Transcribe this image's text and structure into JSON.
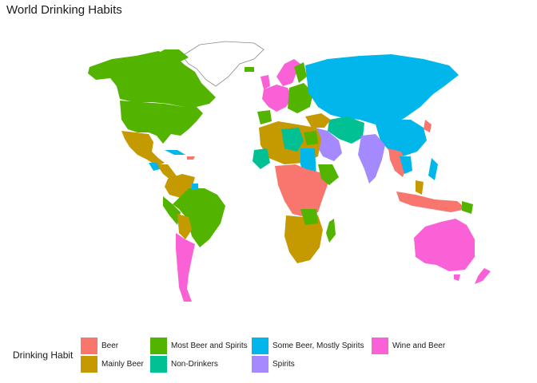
{
  "title": "World Drinking Habits",
  "legend": {
    "title": "Drinking Habit",
    "items": [
      {
        "label": "Beer",
        "color": "#F8766D"
      },
      {
        "label": "Mainly Beer",
        "color": "#C49A00"
      },
      {
        "label": "Most Beer and Spirits",
        "color": "#53B400"
      },
      {
        "label": "Non-Drinkers",
        "color": "#00C094"
      },
      {
        "label": "Some Beer, Mostly Spirits",
        "color": "#00B6EB"
      },
      {
        "label": "Spirits",
        "color": "#A58AFF"
      },
      {
        "label": "Wine and Beer",
        "color": "#FB61D7"
      }
    ]
  },
  "regions": [
    {
      "name": "Greenland",
      "category": "No data"
    },
    {
      "name": "Canada",
      "category": "Most Beer and Spirits"
    },
    {
      "name": "United States",
      "category": "Most Beer and Spirits"
    },
    {
      "name": "Alaska",
      "category": "Most Beer and Spirits"
    },
    {
      "name": "Mexico",
      "category": "Mainly Beer"
    },
    {
      "name": "Central America",
      "category": "Mainly Beer"
    },
    {
      "name": "Cuba",
      "category": "Some Beer, Mostly Spirits"
    },
    {
      "name": "Venezuela / Colombia",
      "category": "Mainly Beer"
    },
    {
      "name": "Brazil",
      "category": "Most Beer and Spirits"
    },
    {
      "name": "Bolivia / Paraguay",
      "category": "Mainly Beer"
    },
    {
      "name": "Argentina / Chile",
      "category": "Wine and Beer"
    },
    {
      "name": "Western Europe",
      "category": "Wine and Beer"
    },
    {
      "name": "Scandinavia",
      "category": "Wine and Beer"
    },
    {
      "name": "Eastern Europe",
      "category": "Most Beer and Spirits"
    },
    {
      "name": "Russia / Central Asia / China",
      "category": "Some Beer, Mostly Spirits"
    },
    {
      "name": "Middle East",
      "category": "Non-Drinkers"
    },
    {
      "name": "Saudi Arabia / Iran",
      "category": "Spirits"
    },
    {
      "name": "India",
      "category": "Spirits"
    },
    {
      "name": "North Africa",
      "category": "Mainly Beer"
    },
    {
      "name": "Central Africa",
      "category": "Beer"
    },
    {
      "name": "Southern Africa",
      "category": "Mainly Beer"
    },
    {
      "name": "Madagascar",
      "category": "Most Beer and Spirits"
    },
    {
      "name": "Southeast Asia",
      "category": "Beer"
    },
    {
      "name": "Indonesia",
      "category": "Beer"
    },
    {
      "name": "Japan",
      "category": "Some Beer, Mostly Spirits"
    },
    {
      "name": "Australia",
      "category": "Wine and Beer"
    },
    {
      "name": "New Zealand",
      "category": "Wine and Beer"
    }
  ]
}
